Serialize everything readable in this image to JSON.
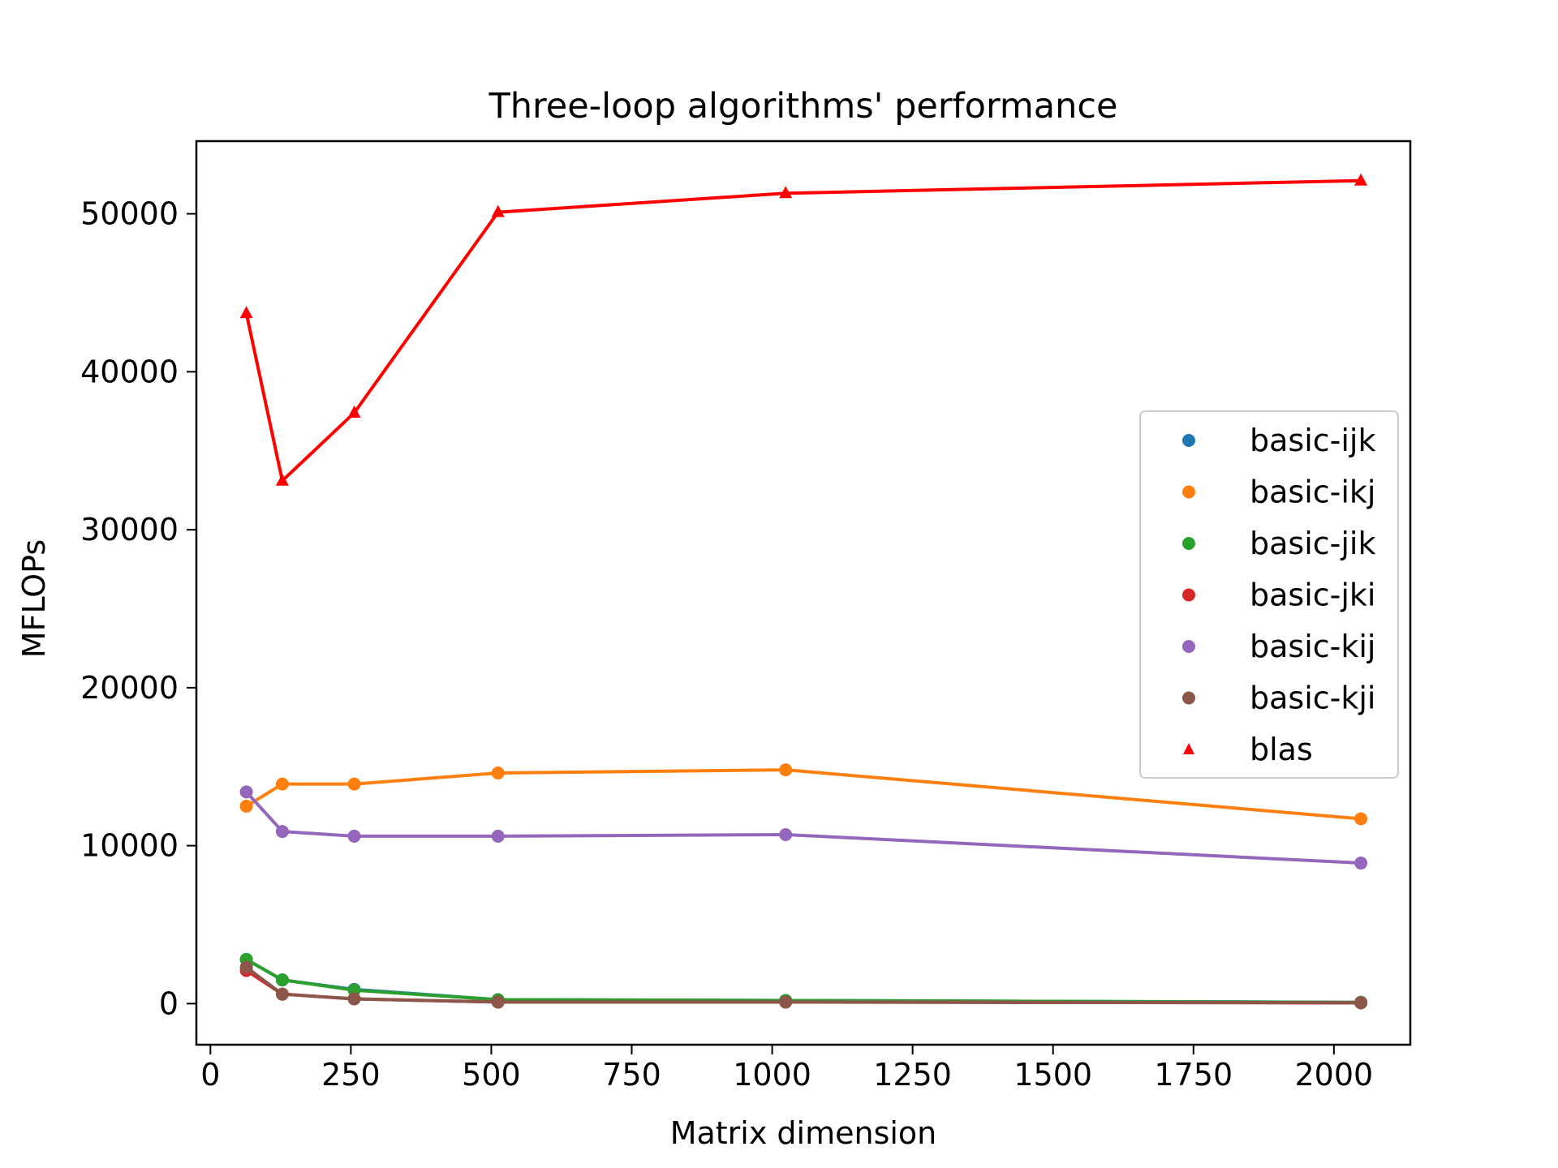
{
  "chart_data": {
    "type": "line",
    "title": "Three-loop algorithms' performance",
    "xlabel": "Matrix dimension",
    "ylabel": "MFLOPs",
    "xlim": [
      -25,
      2136
    ],
    "ylim": [
      -2600,
      54600
    ],
    "x_ticks": [
      0,
      250,
      500,
      750,
      1000,
      1250,
      1500,
      1750,
      2000
    ],
    "x_tick_labels": [
      "0",
      "250",
      "500",
      "750",
      "1000",
      "1250",
      "1500",
      "1750",
      "2000"
    ],
    "y_ticks": [
      0,
      10000,
      20000,
      30000,
      40000,
      50000
    ],
    "y_tick_labels": [
      "0",
      "10000",
      "20000",
      "30000",
      "40000",
      "50000"
    ],
    "grid": false,
    "legend_position": "center-right",
    "x": [
      64,
      128,
      256,
      512,
      1024,
      2048
    ],
    "series": [
      {
        "name": "basic-ijk",
        "color": "#1f77b4",
        "marker": "circle",
        "values": [
          2800,
          1500,
          900,
          250,
          200,
          80
        ]
      },
      {
        "name": "basic-ikj",
        "color": "#ff7f0e",
        "marker": "circle",
        "values": [
          12500,
          13900,
          13900,
          14600,
          14800,
          11700
        ]
      },
      {
        "name": "basic-jik",
        "color": "#2ca02c",
        "marker": "circle",
        "values": [
          2800,
          1500,
          850,
          250,
          200,
          80
        ]
      },
      {
        "name": "basic-jki",
        "color": "#d62728",
        "marker": "circle",
        "values": [
          2100,
          600,
          300,
          100,
          100,
          50
        ]
      },
      {
        "name": "basic-kij",
        "color": "#9467bd",
        "marker": "circle",
        "values": [
          13400,
          10900,
          10600,
          10600,
          10700,
          8900
        ]
      },
      {
        "name": "basic-kji",
        "color": "#8c564b",
        "marker": "circle",
        "values": [
          2300,
          600,
          300,
          100,
          100,
          50
        ]
      },
      {
        "name": "blas",
        "color": "#ff0000",
        "marker": "triangle",
        "values": [
          43700,
          33100,
          37400,
          50100,
          51300,
          52100
        ]
      }
    ]
  }
}
